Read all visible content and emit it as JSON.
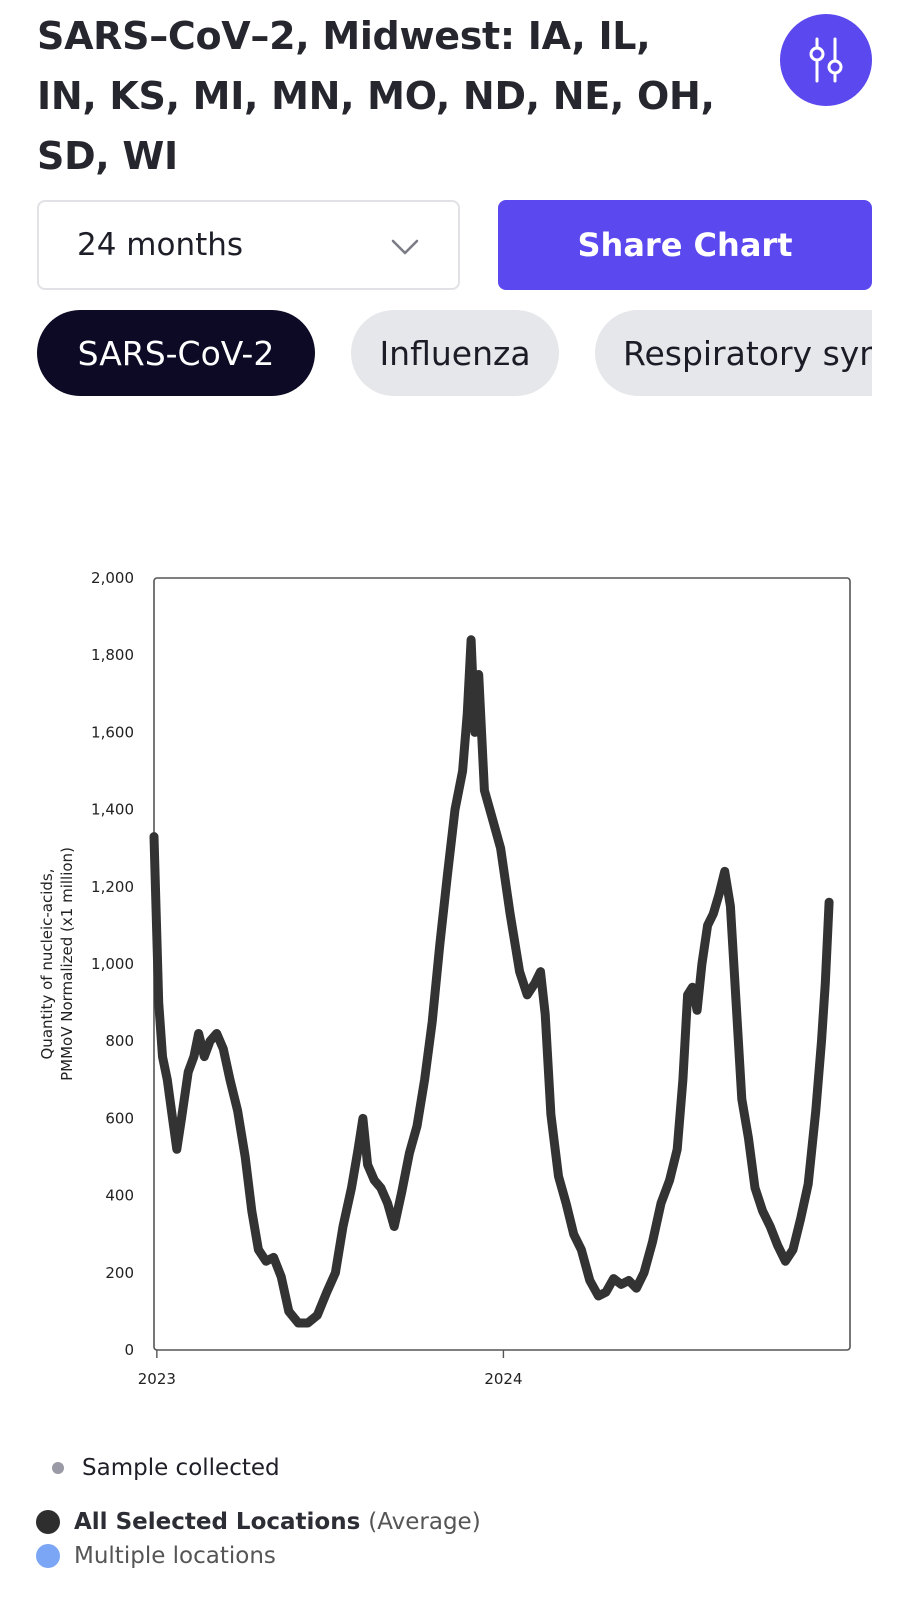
{
  "header": {
    "title": "SARS–CoV–2, Midwest: IA, IL, IN, KS, MI, MN, MO, ND, NE, OH, SD, WI",
    "settings_icon": "sliders-icon"
  },
  "controls": {
    "range_value": "24 months",
    "share_label": "Share Chart"
  },
  "pills": [
    {
      "label": "SARS-CoV-2",
      "active": true
    },
    {
      "label": "Influenza",
      "active": false
    },
    {
      "label": "Respiratory syncytial virus",
      "active": false
    }
  ],
  "colors": {
    "accent": "#5b48ee",
    "line": "#333333",
    "sample_dot": "#9a9aa6",
    "all_locations_dot": "#2e2e2e",
    "multiple_locations_dot": "#7ba6f5"
  },
  "chart_data": {
    "type": "line",
    "ylabel": "Quantity of nucleic-acids, PMMoV Normalized (x1 million)",
    "ylim": [
      0,
      2000
    ],
    "yticks": [
      0,
      200,
      400,
      600,
      800,
      1000,
      1200,
      1400,
      1600,
      1800,
      2000
    ],
    "ytick_labels": [
      "0",
      "200",
      "400",
      "600",
      "800",
      "1,000",
      "1,200",
      "1,400",
      "1,600",
      "1,800",
      "2,000"
    ],
    "xlim": [
      "2022-12-29",
      "2024-12-31"
    ],
    "xticks": [
      {
        "date": "2023-01-01",
        "label": "2023"
      },
      {
        "date": "2024-01-01",
        "label": "2024"
      }
    ],
    "series": [
      {
        "values": [
          [
            "2022-12-29",
            1330
          ],
          [
            "2023-01-03",
            900
          ],
          [
            "2023-01-07",
            760
          ],
          [
            "2023-01-12",
            700
          ],
          [
            "2023-01-17",
            610
          ],
          [
            "2023-01-22",
            520
          ],
          [
            "2023-01-27",
            600
          ],
          [
            "2023-02-03",
            720
          ],
          [
            "2023-02-09",
            760
          ],
          [
            "2023-02-14",
            820
          ],
          [
            "2023-02-20",
            760
          ],
          [
            "2023-02-26",
            800
          ],
          [
            "2023-03-05",
            820
          ],
          [
            "2023-03-12",
            780
          ],
          [
            "2023-03-19",
            700
          ],
          [
            "2023-03-27",
            620
          ],
          [
            "2023-04-04",
            500
          ],
          [
            "2023-04-11",
            360
          ],
          [
            "2023-04-18",
            260
          ],
          [
            "2023-04-26",
            230
          ],
          [
            "2023-05-04",
            240
          ],
          [
            "2023-05-12",
            190
          ],
          [
            "2023-05-20",
            100
          ],
          [
            "2023-05-30",
            70
          ],
          [
            "2023-06-09",
            70
          ],
          [
            "2023-06-19",
            90
          ],
          [
            "2023-06-29",
            150
          ],
          [
            "2023-07-08",
            200
          ],
          [
            "2023-07-16",
            320
          ],
          [
            "2023-07-25",
            420
          ],
          [
            "2023-08-01",
            520
          ],
          [
            "2023-08-06",
            600
          ],
          [
            "2023-08-11",
            480
          ],
          [
            "2023-08-18",
            440
          ],
          [
            "2023-08-25",
            420
          ],
          [
            "2023-09-01",
            380
          ],
          [
            "2023-09-08",
            320
          ],
          [
            "2023-09-16",
            410
          ],
          [
            "2023-09-24",
            510
          ],
          [
            "2023-10-02",
            580
          ],
          [
            "2023-10-10",
            700
          ],
          [
            "2023-10-18",
            850
          ],
          [
            "2023-10-26",
            1050
          ],
          [
            "2023-11-03",
            1230
          ],
          [
            "2023-11-11",
            1400
          ],
          [
            "2023-11-19",
            1500
          ],
          [
            "2023-11-24",
            1650
          ],
          [
            "2023-11-28",
            1840
          ],
          [
            "2023-12-02",
            1600
          ],
          [
            "2023-12-06",
            1750
          ],
          [
            "2023-12-12",
            1450
          ],
          [
            "2023-12-20",
            1380
          ],
          [
            "2023-12-29",
            1300
          ],
          [
            "2024-01-08",
            1130
          ],
          [
            "2024-01-18",
            980
          ],
          [
            "2024-01-26",
            920
          ],
          [
            "2024-02-03",
            950
          ],
          [
            "2024-02-09",
            980
          ],
          [
            "2024-02-14",
            870
          ],
          [
            "2024-02-20",
            610
          ],
          [
            "2024-02-28",
            450
          ],
          [
            "2024-03-07",
            380
          ],
          [
            "2024-03-15",
            300
          ],
          [
            "2024-03-23",
            260
          ],
          [
            "2024-04-01",
            180
          ],
          [
            "2024-04-10",
            140
          ],
          [
            "2024-04-18",
            150
          ],
          [
            "2024-04-26",
            185
          ],
          [
            "2024-05-04",
            170
          ],
          [
            "2024-05-12",
            180
          ],
          [
            "2024-05-20",
            160
          ],
          [
            "2024-05-28",
            200
          ],
          [
            "2024-06-06",
            280
          ],
          [
            "2024-06-15",
            380
          ],
          [
            "2024-06-24",
            440
          ],
          [
            "2024-07-02",
            520
          ],
          [
            "2024-07-08",
            700
          ],
          [
            "2024-07-13",
            920
          ],
          [
            "2024-07-18",
            940
          ],
          [
            "2024-07-23",
            880
          ],
          [
            "2024-07-28",
            1000
          ],
          [
            "2024-08-03",
            1100
          ],
          [
            "2024-08-09",
            1130
          ],
          [
            "2024-08-15",
            1180
          ],
          [
            "2024-08-21",
            1240
          ],
          [
            "2024-08-27",
            1150
          ],
          [
            "2024-09-02",
            900
          ],
          [
            "2024-09-08",
            650
          ],
          [
            "2024-09-15",
            550
          ],
          [
            "2024-09-22",
            420
          ],
          [
            "2024-09-30",
            360
          ],
          [
            "2024-10-08",
            320
          ],
          [
            "2024-10-16",
            270
          ],
          [
            "2024-10-24",
            230
          ],
          [
            "2024-11-01",
            260
          ],
          [
            "2024-11-09",
            340
          ],
          [
            "2024-11-17",
            430
          ],
          [
            "2024-11-25",
            620
          ],
          [
            "2024-12-01",
            800
          ],
          [
            "2024-12-05",
            950
          ],
          [
            "2024-12-09",
            1160
          ]
        ]
      }
    ]
  },
  "legend": {
    "sample_label": "Sample collected",
    "all_locations_label": "All Selected Locations",
    "all_locations_suffix": "(Average)",
    "multiple_locations_label": "Multiple locations"
  }
}
